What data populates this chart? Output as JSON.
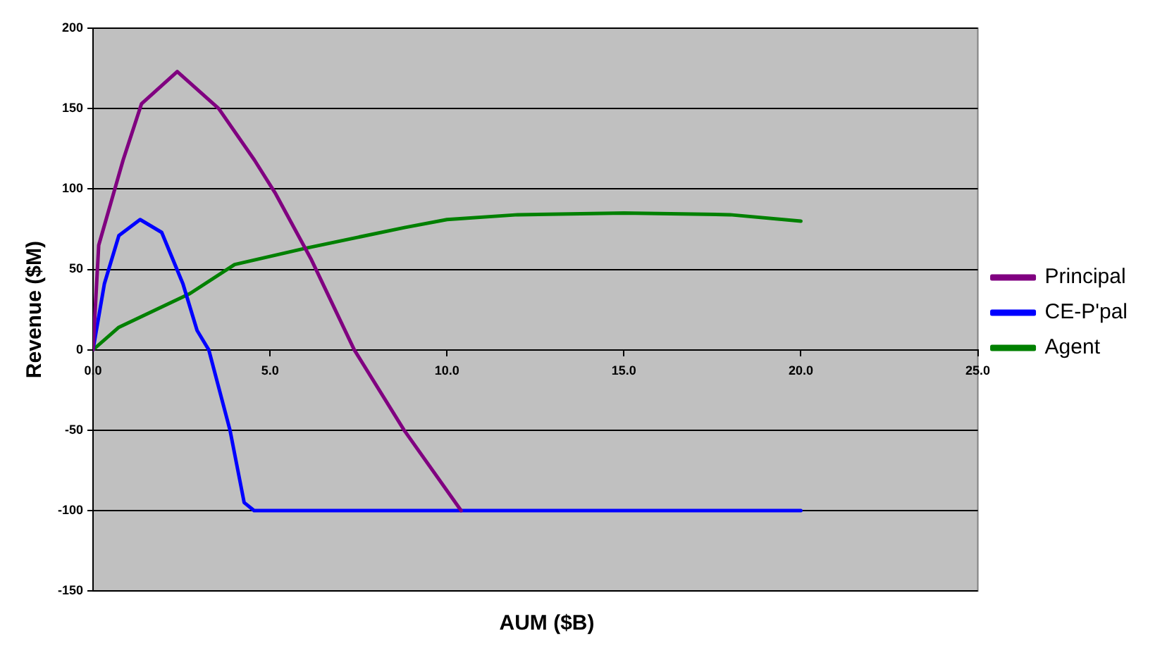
{
  "chart_data": {
    "type": "line",
    "xlabel": "AUM ($B)",
    "ylabel": "Revenue ($M)",
    "xlim": [
      0,
      25
    ],
    "xticks": [
      {
        "value": 0,
        "label": "0.0"
      },
      {
        "value": 5,
        "label": "5.0"
      },
      {
        "value": 10,
        "label": "10.0"
      },
      {
        "value": 15,
        "label": "15.0"
      },
      {
        "value": 20,
        "label": "20.0"
      },
      {
        "value": 25,
        "label": "25.0"
      }
    ],
    "ylim": [
      -150,
      200
    ],
    "yticks": [
      -150,
      -100,
      -50,
      0,
      50,
      100,
      150,
      200
    ],
    "grid": "y",
    "legend": "right",
    "marker": "none",
    "line_style": "solid",
    "series": [
      {
        "name": "Principal",
        "color": "#800080",
        "x": [
          0,
          0.16,
          0.85,
          1.37,
          2.38,
          3.55,
          4.56,
          5.16,
          6.17,
          7.38,
          8.79,
          10.4
        ],
        "values": [
          0,
          65,
          118,
          153,
          173,
          150,
          118,
          97,
          56,
          0,
          -50,
          -100
        ]
      },
      {
        "name": "CE-P'pal",
        "color": "#0000ff",
        "x": [
          0,
          0.32,
          0.73,
          1.33,
          1.94,
          2.54,
          2.94,
          3.27,
          3.87,
          4.27,
          4.55,
          20
        ],
        "values": [
          0,
          41,
          71,
          81,
          73,
          41,
          12,
          0,
          -50,
          -95,
          -100,
          -100
        ]
      },
      {
        "name": "Agent",
        "color": "#008000",
        "x": [
          0,
          0.73,
          2.74,
          4,
          5.97,
          8.8,
          10,
          12,
          15,
          18,
          20
        ],
        "values": [
          0,
          14,
          35,
          53,
          63,
          76,
          81,
          84,
          85,
          84,
          80
        ]
      }
    ]
  }
}
